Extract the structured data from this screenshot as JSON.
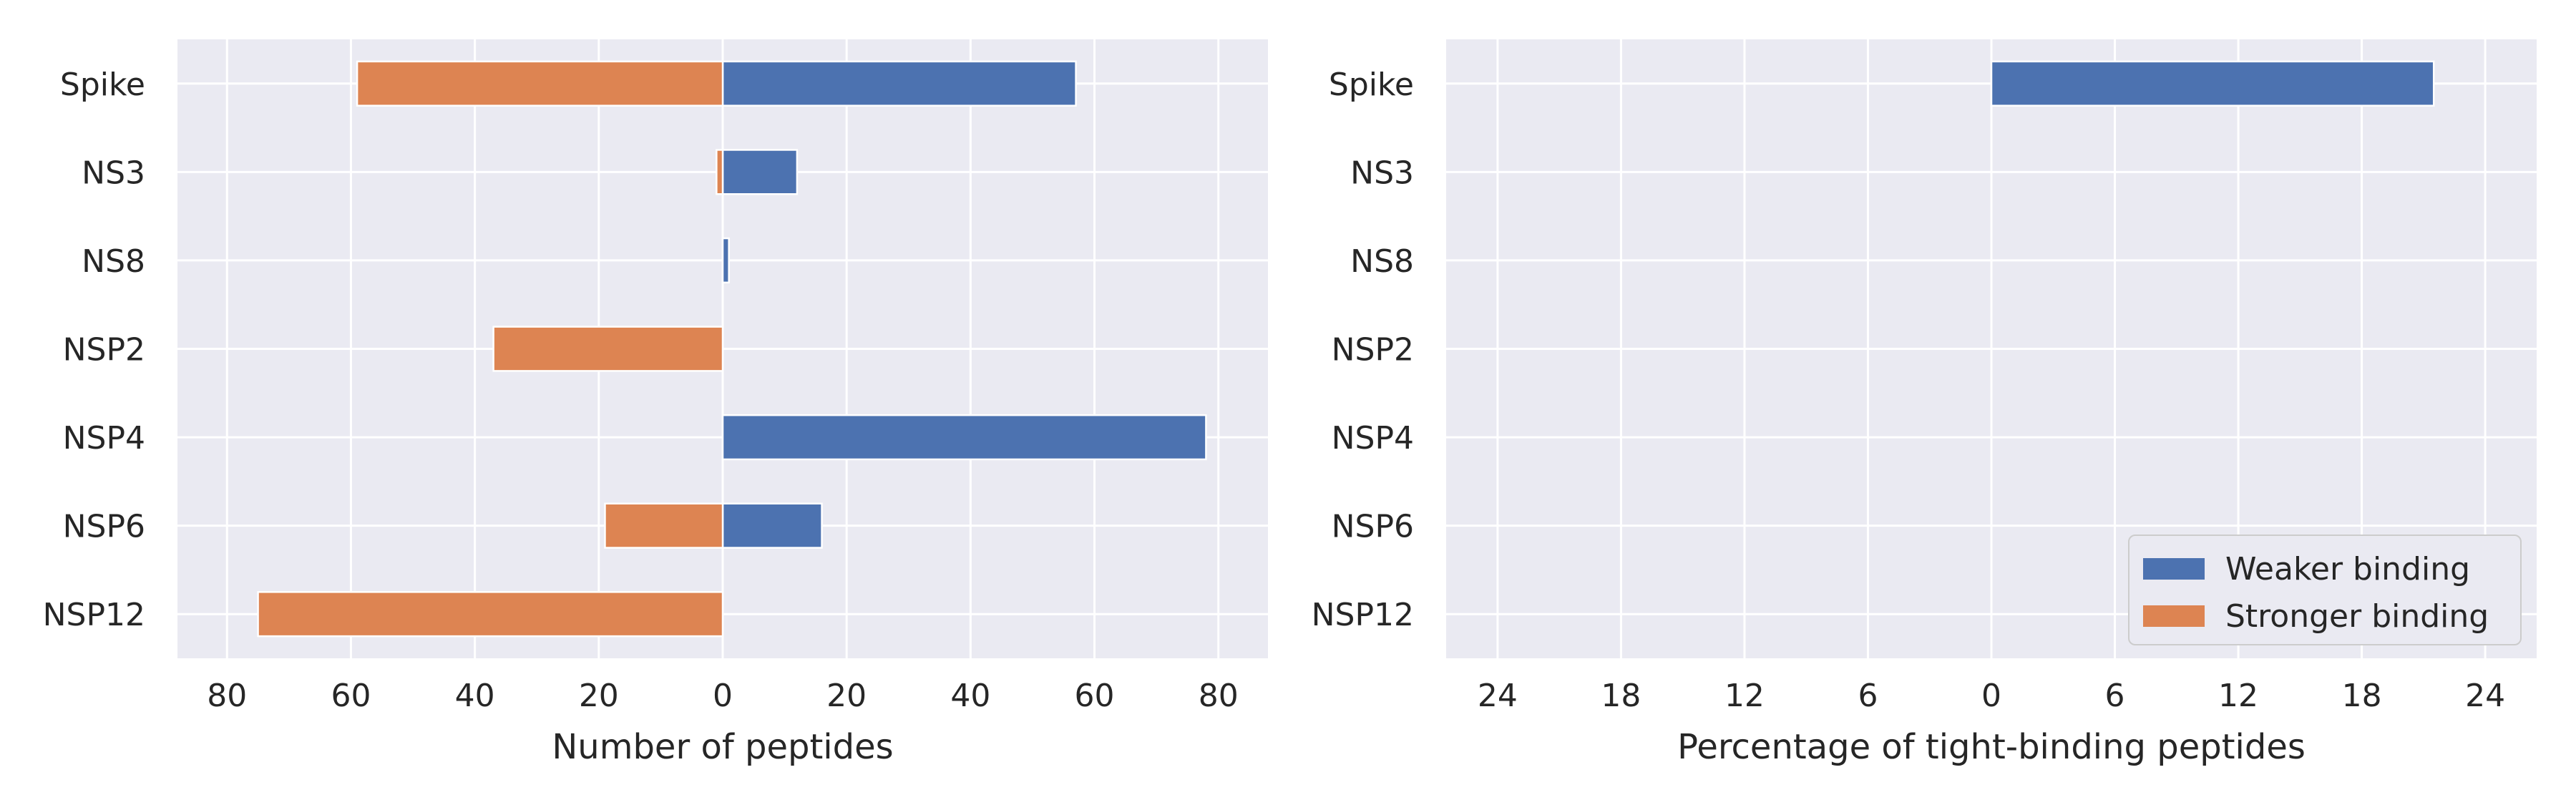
{
  "chart_data": [
    {
      "type": "bar",
      "orientation": "horizontal",
      "diverging": true,
      "categories": [
        "Spike",
        "NS3",
        "NS8",
        "NSP2",
        "NSP4",
        "NSP6",
        "NSP12"
      ],
      "series": [
        {
          "name": "Weaker binding",
          "values": [
            57,
            12,
            1,
            0,
            78,
            16,
            0
          ],
          "side": "positive"
        },
        {
          "name": "Stronger binding",
          "values": [
            59,
            1,
            0,
            37,
            0,
            19,
            75
          ],
          "side": "negative"
        }
      ],
      "xlabel": "Number of peptides",
      "xlim": [
        -88,
        88
      ],
      "xticks": [
        -80,
        -60,
        -40,
        -20,
        0,
        20,
        40,
        60,
        80
      ],
      "xtick_labels": [
        "80",
        "60",
        "40",
        "20",
        "0",
        "20",
        "40",
        "60",
        "80"
      ],
      "grid": true,
      "legend": "none"
    },
    {
      "type": "bar",
      "orientation": "horizontal",
      "diverging": true,
      "categories": [
        "Spike",
        "NS3",
        "NS8",
        "NSP2",
        "NSP4",
        "NSP6",
        "NSP12"
      ],
      "series": [
        {
          "name": "Weaker binding",
          "values": [
            21.5,
            0,
            0,
            0,
            0,
            0,
            0
          ],
          "side": "positive"
        },
        {
          "name": "Stronger binding",
          "values": [
            0,
            0,
            0,
            0,
            0,
            0,
            0
          ],
          "side": "negative"
        }
      ],
      "xlabel": "Percentage of tight-binding peptides",
      "xlim": [
        -26.5,
        26.5
      ],
      "xticks": [
        -24,
        -18,
        -12,
        -6,
        0,
        6,
        12,
        18,
        24
      ],
      "xtick_labels": [
        "24",
        "18",
        "12",
        "6",
        "0",
        "6",
        "12",
        "18",
        "24"
      ],
      "grid": true,
      "legend": "lower-right"
    }
  ],
  "colors": {
    "weaker": "#4c72b0",
    "stronger": "#dd8452",
    "axes_bg": "#eaeaf2",
    "grid": "#ffffff",
    "text": "#262626"
  }
}
